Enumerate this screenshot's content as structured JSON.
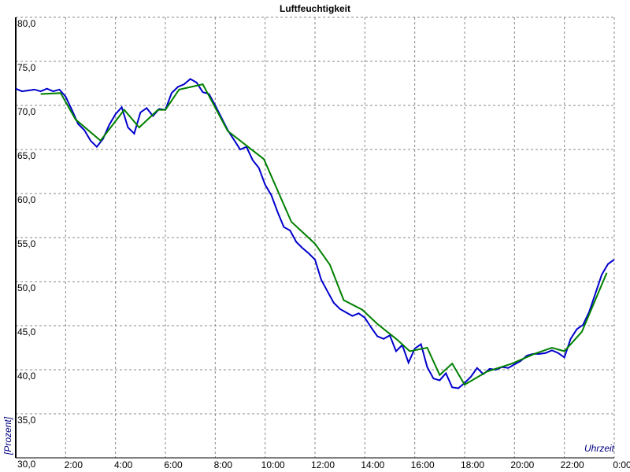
{
  "chart_data": {
    "type": "line",
    "title": "Luftfeuchtigkeit",
    "ylabel": "[Prozent]",
    "xlabel": "Uhrzeit",
    "xlim": [
      0,
      24
    ],
    "ylim": [
      30,
      80
    ],
    "grid": true,
    "xticks": [
      {
        "value": 2,
        "label": "2:00"
      },
      {
        "value": 4,
        "label": "4:00"
      },
      {
        "value": 6,
        "label": "6:00"
      },
      {
        "value": 8,
        "label": "8:00"
      },
      {
        "value": 10,
        "label": "10:00"
      },
      {
        "value": 12,
        "label": "12:00"
      },
      {
        "value": 14,
        "label": "14:00"
      },
      {
        "value": 16,
        "label": "16:00"
      },
      {
        "value": 18,
        "label": "18:00"
      },
      {
        "value": 20,
        "label": "20:00"
      },
      {
        "value": 22,
        "label": "22:00"
      },
      {
        "value": 24,
        "label": "0:00"
      }
    ],
    "yticks": [
      {
        "value": 30,
        "label": "30,0"
      },
      {
        "value": 35,
        "label": "35,0"
      },
      {
        "value": 40,
        "label": "40,0"
      },
      {
        "value": 45,
        "label": "45,0"
      },
      {
        "value": 50,
        "label": "50,0"
      },
      {
        "value": 55,
        "label": "55,0"
      },
      {
        "value": 60,
        "label": "60,0"
      },
      {
        "value": 65,
        "label": "65,0"
      },
      {
        "value": 70,
        "label": "70,0"
      },
      {
        "value": 75,
        "label": "75,0"
      },
      {
        "value": 80,
        "label": "80,0"
      }
    ],
    "series": [
      {
        "color": "#0000cc",
        "x": [
          0,
          0.25,
          0.5,
          0.75,
          1,
          1.25,
          1.5,
          1.75,
          2,
          2.25,
          2.5,
          2.75,
          3,
          3.25,
          3.5,
          3.75,
          4,
          4.25,
          4.5,
          4.75,
          5,
          5.25,
          5.5,
          5.75,
          6,
          6.25,
          6.5,
          6.75,
          7,
          7.25,
          7.5,
          7.75,
          8,
          8.25,
          8.5,
          8.75,
          9,
          9.25,
          9.5,
          9.75,
          10,
          10.25,
          10.5,
          10.75,
          11,
          11.25,
          11.5,
          11.75,
          12,
          12.25,
          12.5,
          12.75,
          13,
          13.25,
          13.5,
          13.75,
          14,
          14.25,
          14.5,
          14.75,
          15,
          15.25,
          15.5,
          15.75,
          16,
          16.25,
          16.5,
          16.75,
          17,
          17.25,
          17.5,
          17.75,
          18,
          18.25,
          18.5,
          18.75,
          19,
          19.25,
          19.5,
          19.75,
          20,
          20.25,
          20.5,
          20.75,
          21,
          21.25,
          21.5,
          21.75,
          22,
          22.25,
          22.5,
          22.75,
          23,
          23.25,
          23.5,
          23.75,
          24
        ],
        "values": [
          71.9,
          71.6,
          71.7,
          71.8,
          71.6,
          71.9,
          71.6,
          71.8,
          71.0,
          69.5,
          67.9,
          67.2,
          66.0,
          65.3,
          66.2,
          67.8,
          69.0,
          69.8,
          67.5,
          66.8,
          69.2,
          69.7,
          68.8,
          69.6,
          69.5,
          71.4,
          72.1,
          72.4,
          73.0,
          72.6,
          71.5,
          71.3,
          70.0,
          68.6,
          67.2,
          66.1,
          65.0,
          65.3,
          63.8,
          62.9,
          61.0,
          59.8,
          57.9,
          56.2,
          55.8,
          54.5,
          53.8,
          53.2,
          52.5,
          50.2,
          48.9,
          47.6,
          46.9,
          46.5,
          46.1,
          46.4,
          45.9,
          44.8,
          43.8,
          43.5,
          43.9,
          42.1,
          42.8,
          40.8,
          42.4,
          42.9,
          40.3,
          39.0,
          38.8,
          39.6,
          38.0,
          37.9,
          38.5,
          39.2,
          40.2,
          39.5,
          40.1,
          40.0,
          40.3,
          40.2,
          40.6,
          41.0,
          41.6,
          41.8,
          41.8,
          41.9,
          42.2,
          41.9,
          41.4,
          43.5,
          44.6,
          45.1,
          46.6,
          48.7,
          50.8,
          52.0,
          52.5
        ]
      },
      {
        "color": "#008000",
        "x": [
          1,
          1.8,
          2.4,
          3.4,
          4.35,
          4.95,
          5.7,
          6.0,
          6.55,
          7.5,
          8.5,
          9.95,
          11.05,
          12.0,
          12.6,
          13.15,
          13.9,
          14.5,
          15.3,
          15.8,
          16.5,
          17.0,
          17.5,
          18.0,
          18.9,
          19.9,
          20.8,
          21.5,
          22.0,
          22.7,
          23.7
        ],
        "values": [
          71.3,
          71.4,
          68.4,
          66.0,
          69.5,
          67.5,
          69.5,
          69.5,
          71.8,
          72.4,
          67.1,
          63.9,
          56.8,
          54.3,
          51.9,
          47.9,
          46.8,
          45.2,
          43.4,
          42.1,
          42.5,
          39.4,
          40.7,
          38.3,
          39.8,
          40.7,
          41.8,
          42.5,
          42.1,
          44.3,
          51.0
        ]
      }
    ]
  }
}
